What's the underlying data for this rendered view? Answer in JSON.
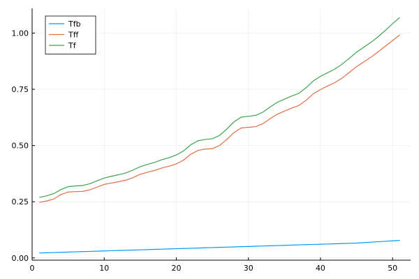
{
  "chart_data": {
    "type": "line",
    "title": "",
    "xlabel": "",
    "ylabel": "",
    "xlim": [
      0,
      52.5
    ],
    "ylim": [
      -0.01,
      1.11
    ],
    "xticks": [
      0,
      10,
      20,
      30,
      40,
      50
    ],
    "xtick_labels": [
      "0",
      "10",
      "20",
      "30",
      "40",
      "50"
    ],
    "yticks": [
      0.0,
      0.25,
      0.5,
      0.75,
      1.0
    ],
    "ytick_labels": [
      "0.00",
      "0.25",
      "0.50",
      "0.75",
      "1.00"
    ],
    "grid": true,
    "legend_position": "top-left",
    "x": [
      1,
      2,
      3,
      4,
      5,
      6,
      7,
      8,
      9,
      10,
      11,
      12,
      13,
      14,
      15,
      16,
      17,
      18,
      19,
      20,
      21,
      22,
      23,
      24,
      25,
      26,
      27,
      28,
      29,
      30,
      31,
      32,
      33,
      34,
      35,
      36,
      37,
      38,
      39,
      40,
      41,
      42,
      43,
      44,
      45,
      46,
      47,
      48,
      49,
      50,
      51
    ],
    "series": [
      {
        "name": "Tfb",
        "color": "#009af9",
        "values": [
          0.022,
          0.023,
          0.024,
          0.025,
          0.026,
          0.027,
          0.028,
          0.029,
          0.03,
          0.031,
          0.032,
          0.033,
          0.034,
          0.035,
          0.036,
          0.037,
          0.038,
          0.039,
          0.04,
          0.041,
          0.042,
          0.043,
          0.044,
          0.045,
          0.046,
          0.047,
          0.048,
          0.049,
          0.05,
          0.051,
          0.052,
          0.053,
          0.054,
          0.055,
          0.056,
          0.057,
          0.058,
          0.059,
          0.06,
          0.061,
          0.062,
          0.063,
          0.064,
          0.065,
          0.066,
          0.068,
          0.07,
          0.072,
          0.074,
          0.076,
          0.078
        ]
      },
      {
        "name": "Tff",
        "color": "#e26f46",
        "values": [
          0.247,
          0.253,
          0.262,
          0.282,
          0.293,
          0.295,
          0.296,
          0.303,
          0.315,
          0.327,
          0.333,
          0.339,
          0.346,
          0.357,
          0.372,
          0.381,
          0.389,
          0.4,
          0.408,
          0.418,
          0.435,
          0.461,
          0.478,
          0.484,
          0.486,
          0.5,
          0.527,
          0.558,
          0.578,
          0.581,
          0.584,
          0.597,
          0.619,
          0.639,
          0.653,
          0.666,
          0.678,
          0.701,
          0.73,
          0.749,
          0.765,
          0.78,
          0.8,
          0.825,
          0.851,
          0.872,
          0.893,
          0.917,
          0.942,
          0.967,
          0.992
        ]
      },
      {
        "name": "Tf",
        "color": "#3da44d",
        "values": [
          0.269,
          0.276,
          0.286,
          0.304,
          0.317,
          0.32,
          0.322,
          0.33,
          0.343,
          0.355,
          0.363,
          0.37,
          0.378,
          0.391,
          0.406,
          0.416,
          0.425,
          0.437,
          0.446,
          0.458,
          0.476,
          0.503,
          0.521,
          0.527,
          0.53,
          0.545,
          0.573,
          0.605,
          0.626,
          0.63,
          0.634,
          0.648,
          0.671,
          0.692,
          0.706,
          0.72,
          0.732,
          0.757,
          0.787,
          0.808,
          0.824,
          0.84,
          0.862,
          0.888,
          0.915,
          0.937,
          0.959,
          0.984,
          1.012,
          1.042,
          1.07
        ]
      }
    ]
  }
}
